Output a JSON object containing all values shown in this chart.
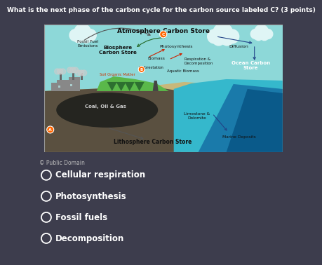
{
  "title": "What is the next phase of the carbon cycle for the carbon source labeled C? (3 points)",
  "bg_color": "#3d3d4d",
  "sky_color": "#8dd8d8",
  "cloud_color": "#dff5f5",
  "sandy_color": "#c8b87a",
  "dark_ground_color": "#5a5040",
  "coal_color": "#252520",
  "ocean_shallow": "#35b8cc",
  "ocean_deep": "#1a7aaa",
  "ocean_deepest": "#0a5a8a",
  "green_bio": "#5ab84a",
  "green_dark": "#2d7030",
  "factory_color": "#888888",
  "factory_dark": "#666666",
  "copyright": "© Public Domain",
  "answer_options": [
    "Cellular respiration",
    "Photosynthesis",
    "Fossil fuels",
    "Decomposition"
  ]
}
